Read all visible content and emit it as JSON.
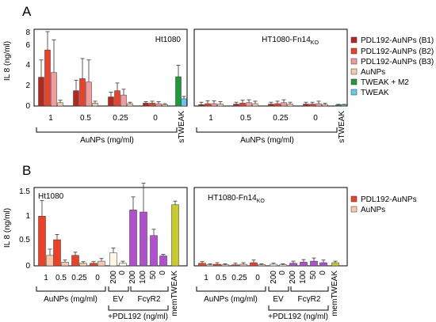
{
  "panels": [
    {
      "letter": "A",
      "ylabel": "IL 8 (ng/ml)",
      "ylim": [
        0,
        8
      ],
      "yticks": [
        "0",
        "2",
        "4",
        "6",
        "8"
      ],
      "left": {
        "label": "Ht1080",
        "categories": [
          "1",
          "0.5",
          "0.25",
          "0"
        ],
        "extra_label": "sTWEAK",
        "brackets": [
          {
            "label": "AuNPs (mg/ml)"
          }
        ]
      },
      "right": {
        "label": "HT1080-Fn14",
        "label_sub": "KO",
        "categories": [
          "1",
          "0.5",
          "0.25",
          "0"
        ],
        "extra_label": "sTWEAK",
        "brackets": [
          {
            "label": "AuNPs (mg/ml)"
          }
        ]
      },
      "legend": [
        {
          "name": "PDL192-AuNPs (B1)",
          "color": "#b5261d"
        },
        {
          "name": "PDL192-AuNPs (B2)",
          "color": "#ee4026"
        },
        {
          "name": "PDL192-AuNPs (B3)",
          "color": "#f29a9e"
        },
        {
          "name": "AuNPs",
          "color": "#f6c9a8"
        },
        {
          "name": "TWEAK + M2",
          "color": "#1f9a3a"
        },
        {
          "name": "TWEAK",
          "color": "#63c7ee"
        }
      ]
    },
    {
      "letter": "B",
      "ylabel": "IL 8 (ng/ml)",
      "ylim": [
        0,
        1.5
      ],
      "yticks": [
        "0",
        "0.5",
        "1",
        "1.5"
      ],
      "left": {
        "label": "Ht1080",
        "categories": [
          "1",
          "0.5",
          "0.25",
          "0",
          "200",
          "0",
          "200",
          "100",
          "50",
          "0"
        ],
        "extra_label": "memTWEAK",
        "brackets": [
          {
            "label": "AuNPs (mg/ml)"
          },
          {
            "label": "EV"
          },
          {
            "label": "FcγR2"
          }
        ],
        "bottom_label": "+PDL192 (ng/ml)"
      },
      "right": {
        "label": "HT1080-Fn14",
        "label_sub": "KO",
        "categories": [
          "1",
          "0.5",
          "0.25",
          "0",
          "200",
          "0",
          "200",
          "100",
          "50",
          "0"
        ],
        "extra_label": "memTWEAK",
        "brackets": [
          {
            "label": "AuNPs (mg/ml)"
          },
          {
            "label": "EV"
          },
          {
            "label": "FcγR2"
          }
        ],
        "bottom_label": "+PDL192 (ng/ml)"
      },
      "legend": [
        {
          "name": "PDL192-AuNPs",
          "color": "#ee4026"
        },
        {
          "name": "AuNPs",
          "color": "#f6c9a8"
        }
      ]
    }
  ],
  "chart_data": [
    {
      "type": "bar",
      "panel": "A",
      "subplot": "Ht1080",
      "ylabel": "IL 8 (ng/ml)",
      "ylim": [
        0,
        8
      ],
      "xlabel": "AuNPs (mg/ml)",
      "categories": [
        "1",
        "0.5",
        "0.25",
        "0"
      ],
      "series": [
        {
          "name": "PDL192-AuNPs (B1)",
          "values": [
            3.0,
            1.6,
            0.95,
            0.3
          ],
          "errors": [
            1.8,
            1.1,
            0.5,
            0.15
          ]
        },
        {
          "name": "PDL192-AuNPs (B2)",
          "values": [
            5.85,
            2.85,
            1.6,
            0.3
          ],
          "errors": [
            1.9,
            2.1,
            0.8,
            0.2
          ]
        },
        {
          "name": "PDL192-AuNPs (B3)",
          "values": [
            3.5,
            2.5,
            1.15,
            0.25
          ],
          "errors": [
            3.4,
            2.3,
            0.6,
            0.2
          ]
        },
        {
          "name": "AuNPs",
          "values": [
            0.35,
            0.3,
            0.25,
            0.15
          ],
          "errors": [
            0.25,
            0.2,
            0.15,
            0.1
          ]
        }
      ],
      "extra": [
        {
          "category": "sTWEAK",
          "name": "TWEAK + M2",
          "value": 3.05,
          "error": 1.2
        },
        {
          "category": "sTWEAK",
          "name": "TWEAK",
          "value": 0.75,
          "error": 0.25
        }
      ]
    },
    {
      "type": "bar",
      "panel": "A",
      "subplot": "HT1080-Fn14KO",
      "ylabel": "IL 8 (ng/ml)",
      "ylim": [
        0,
        8
      ],
      "xlabel": "AuNPs (mg/ml)",
      "categories": [
        "1",
        "0.5",
        "0.25",
        "0"
      ],
      "series": [
        {
          "name": "PDL192-AuNPs (B1)",
          "values": [
            0.15,
            0.2,
            0.2,
            0.2
          ],
          "errors": [
            0.25,
            0.2,
            0.2,
            0.2
          ]
        },
        {
          "name": "PDL192-AuNPs (B2)",
          "values": [
            0.25,
            0.3,
            0.25,
            0.2
          ],
          "errors": [
            0.3,
            0.3,
            0.25,
            0.2
          ]
        },
        {
          "name": "PDL192-AuNPs (B3)",
          "values": [
            0.25,
            0.35,
            0.35,
            0.25
          ],
          "errors": [
            0.3,
            0.3,
            0.3,
            0.25
          ]
        },
        {
          "name": "AuNPs",
          "values": [
            0.2,
            0.25,
            0.2,
            0.15
          ],
          "errors": [
            0.25,
            0.25,
            0.2,
            0.15
          ]
        }
      ],
      "extra": [
        {
          "category": "sTWEAK",
          "name": "TWEAK + M2",
          "value": 0.12,
          "error": 0.05
        },
        {
          "category": "sTWEAK",
          "name": "TWEAK",
          "value": 0.12,
          "error": 0.05
        }
      ]
    },
    {
      "type": "bar",
      "panel": "B",
      "subplot": "Ht1080",
      "ylabel": "IL 8 (ng/ml)",
      "ylim": [
        0,
        1.5
      ],
      "groups": [
        {
          "label": "AuNPs (mg/ml)",
          "categories": [
            "1",
            "0.5",
            "0.25",
            "0"
          ],
          "series": [
            {
              "name": "PDL192-AuNPs",
              "values": [
                0.95,
                0.5,
                0.2,
                0.05
              ],
              "errors": [
                0.3,
                0.1,
                0.06,
                0.03
              ]
            },
            {
              "name": "AuNPs",
              "values": [
                0.2,
                0.07,
                0.05,
                0.09
              ],
              "errors": [
                0.12,
                0.04,
                0.03,
                0.05
              ]
            }
          ]
        },
        {
          "label": "EV",
          "categories": [
            "200",
            "0"
          ],
          "color": "#fff8e6",
          "values": [
            0.25,
            0.05
          ],
          "errors": [
            0.09,
            0.04
          ]
        },
        {
          "label": "FcγR2",
          "categories": [
            "200",
            "100",
            "50",
            "0"
          ],
          "color": "#b24fcf",
          "values": [
            1.07,
            1.03,
            0.58,
            0.19
          ],
          "errors": [
            0.25,
            0.55,
            0.12,
            0.03
          ]
        },
        {
          "label": "memTWEAK",
          "categories": [
            "memTWEAK"
          ],
          "color": "#c7cc2a",
          "values": [
            1.17
          ],
          "errors": [
            0.07
          ]
        }
      ],
      "x_group_label": "+PDL192 (ng/ml)"
    },
    {
      "type": "bar",
      "panel": "B",
      "subplot": "HT1080-Fn14KO",
      "ylabel": "IL 8 (ng/ml)",
      "ylim": [
        0,
        1.5
      ],
      "groups": [
        {
          "label": "AuNPs (mg/ml)",
          "categories": [
            "1",
            "0.5",
            "0.25",
            "0"
          ],
          "series": [
            {
              "name": "PDL192-AuNPs",
              "values": [
                0.05,
                0.03,
                0.02,
                0.06
              ],
              "errors": [
                0.03,
                0.03,
                0.03,
                0.05
              ]
            },
            {
              "name": "AuNPs",
              "values": [
                0.02,
                0.02,
                0.03,
                0.02
              ],
              "errors": [
                0.02,
                0.02,
                0.03,
                0.02
              ]
            }
          ]
        },
        {
          "label": "EV",
          "categories": [
            "200",
            "0"
          ],
          "color": "#fff8e6",
          "values": [
            0.03,
            0.02
          ],
          "errors": [
            0.02,
            0.02
          ]
        },
        {
          "label": "FcγR2",
          "categories": [
            "200",
            "100",
            "50",
            "0"
          ],
          "color": "#b24fcf",
          "values": [
            0.05,
            0.07,
            0.09,
            0.06
          ],
          "errors": [
            0.04,
            0.05,
            0.06,
            0.05
          ]
        },
        {
          "label": "memTWEAK",
          "categories": [
            "memTWEAK"
          ],
          "color": "#c7cc2a",
          "values": [
            0.06
          ],
          "errors": [
            0.03
          ]
        }
      ],
      "x_group_label": "+PDL192 (ng/ml)"
    }
  ]
}
